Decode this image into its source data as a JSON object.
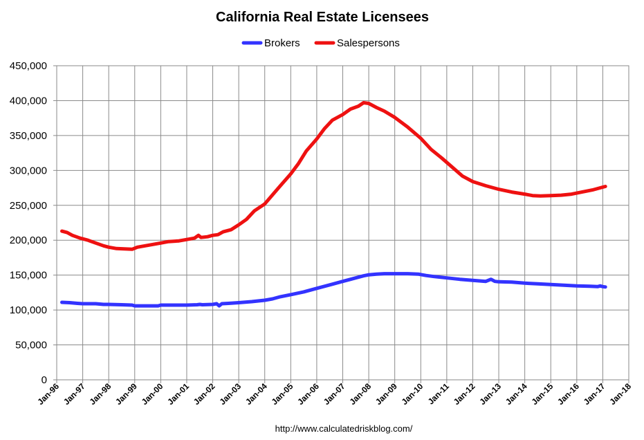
{
  "chart_data": {
    "type": "line",
    "title": "California Real Estate Licensees",
    "source": "http://www.calculatedriskblog.com/",
    "xlabel": "",
    "ylabel": "",
    "ylim": [
      0,
      450000
    ],
    "yticks": [
      0,
      50000,
      100000,
      150000,
      200000,
      250000,
      300000,
      350000,
      400000,
      450000
    ],
    "ytick_labels": [
      "0",
      "50,000",
      "100,000",
      "150,000",
      "200,000",
      "250,000",
      "300,000",
      "350,000",
      "400,000",
      "450,000"
    ],
    "xlim": [
      1996,
      2018
    ],
    "xtick_labels": [
      "Jan-96",
      "Jan-97",
      "Jan-98",
      "Jan-99",
      "Jan-00",
      "Jan-01",
      "Jan-02",
      "Jan-03",
      "Jan-04",
      "Jan-05",
      "Jan-06",
      "Jan-07",
      "Jan-08",
      "Jan-09",
      "Jan-10",
      "Jan-11",
      "Jan-12",
      "Jan-13",
      "Jan-14",
      "Jan-15",
      "Jan-16",
      "Jan-17",
      "Jan-18"
    ],
    "grid": true,
    "legend_position": "top-center",
    "series": [
      {
        "name": "Brokers",
        "color": "#3333ff",
        "points": [
          [
            1996.2,
            111000
          ],
          [
            1996.5,
            110500
          ],
          [
            1996.8,
            109500
          ],
          [
            1997.0,
            109000
          ],
          [
            1997.5,
            109000
          ],
          [
            1997.8,
            108000
          ],
          [
            1998.0,
            108000
          ],
          [
            1998.5,
            107500
          ],
          [
            1998.9,
            107000
          ],
          [
            1999.0,
            106000
          ],
          [
            1999.5,
            106000
          ],
          [
            1999.9,
            106000
          ],
          [
            2000.0,
            107000
          ],
          [
            2000.5,
            107000
          ],
          [
            2001.0,
            107000
          ],
          [
            2001.4,
            107500
          ],
          [
            2001.5,
            108000
          ],
          [
            2001.6,
            107500
          ],
          [
            2002.0,
            108000
          ],
          [
            2002.15,
            109000
          ],
          [
            2002.25,
            106000
          ],
          [
            2002.35,
            109000
          ],
          [
            2002.6,
            109500
          ],
          [
            2003.0,
            110500
          ],
          [
            2003.5,
            112000
          ],
          [
            2004.0,
            114000
          ],
          [
            2004.3,
            116000
          ],
          [
            2004.6,
            119000
          ],
          [
            2005.0,
            122000
          ],
          [
            2005.5,
            126000
          ],
          [
            2006.0,
            131000
          ],
          [
            2006.5,
            136000
          ],
          [
            2007.0,
            141000
          ],
          [
            2007.5,
            146000
          ],
          [
            2007.8,
            149000
          ],
          [
            2008.0,
            150500
          ],
          [
            2008.3,
            151500
          ],
          [
            2008.6,
            152000
          ],
          [
            2009.0,
            152000
          ],
          [
            2009.5,
            152000
          ],
          [
            2009.9,
            151500
          ],
          [
            2010.2,
            149500
          ],
          [
            2010.5,
            148000
          ],
          [
            2011.0,
            146000
          ],
          [
            2011.5,
            144000
          ],
          [
            2012.0,
            142500
          ],
          [
            2012.5,
            141000
          ],
          [
            2012.7,
            144000
          ],
          [
            2012.85,
            141000
          ],
          [
            2013.0,
            140500
          ],
          [
            2013.5,
            140000
          ],
          [
            2014.0,
            138500
          ],
          [
            2014.5,
            137500
          ],
          [
            2015.0,
            136500
          ],
          [
            2015.5,
            135500
          ],
          [
            2016.0,
            134500
          ],
          [
            2016.5,
            134000
          ],
          [
            2016.8,
            133500
          ],
          [
            2016.9,
            134500
          ],
          [
            2017.0,
            133500
          ],
          [
            2017.1,
            133000
          ]
        ]
      },
      {
        "name": "Salespersons",
        "color": "#ee1111",
        "points": [
          [
            1996.2,
            213000
          ],
          [
            1996.4,
            211000
          ],
          [
            1996.6,
            207000
          ],
          [
            1996.9,
            203000
          ],
          [
            1997.2,
            200000
          ],
          [
            1997.5,
            196000
          ],
          [
            1997.8,
            192000
          ],
          [
            1998.0,
            190000
          ],
          [
            1998.3,
            188000
          ],
          [
            1998.6,
            187500
          ],
          [
            1998.9,
            187000
          ],
          [
            1999.1,
            190000
          ],
          [
            1999.4,
            192000
          ],
          [
            1999.7,
            194000
          ],
          [
            2000.0,
            196000
          ],
          [
            2000.3,
            198000
          ],
          [
            2000.7,
            199000
          ],
          [
            2001.0,
            201000
          ],
          [
            2001.3,
            203000
          ],
          [
            2001.45,
            207000
          ],
          [
            2001.55,
            204000
          ],
          [
            2001.8,
            205000
          ],
          [
            2002.0,
            207000
          ],
          [
            2002.2,
            208000
          ],
          [
            2002.4,
            212000
          ],
          [
            2002.7,
            215000
          ],
          [
            2003.0,
            222000
          ],
          [
            2003.3,
            230000
          ],
          [
            2003.6,
            242000
          ],
          [
            2003.8,
            247000
          ],
          [
            2004.0,
            252000
          ],
          [
            2004.3,
            265000
          ],
          [
            2004.6,
            278000
          ],
          [
            2005.0,
            295000
          ],
          [
            2005.3,
            310000
          ],
          [
            2005.6,
            328000
          ],
          [
            2006.0,
            345000
          ],
          [
            2006.3,
            360000
          ],
          [
            2006.6,
            372000
          ],
          [
            2007.0,
            380000
          ],
          [
            2007.3,
            388000
          ],
          [
            2007.6,
            392000
          ],
          [
            2007.8,
            397000
          ],
          [
            2008.0,
            396000
          ],
          [
            2008.3,
            390000
          ],
          [
            2008.6,
            385000
          ],
          [
            2009.0,
            376000
          ],
          [
            2009.5,
            362000
          ],
          [
            2010.0,
            346000
          ],
          [
            2010.4,
            330000
          ],
          [
            2010.8,
            318000
          ],
          [
            2011.2,
            305000
          ],
          [
            2011.6,
            292000
          ],
          [
            2012.0,
            284000
          ],
          [
            2012.5,
            278000
          ],
          [
            2013.0,
            273000
          ],
          [
            2013.5,
            269000
          ],
          [
            2014.0,
            266000
          ],
          [
            2014.3,
            264000
          ],
          [
            2014.6,
            263500
          ],
          [
            2015.0,
            264000
          ],
          [
            2015.4,
            264500
          ],
          [
            2015.8,
            266000
          ],
          [
            2016.2,
            269000
          ],
          [
            2016.6,
            272000
          ],
          [
            2017.0,
            276000
          ],
          [
            2017.1,
            277000
          ]
        ]
      }
    ]
  }
}
